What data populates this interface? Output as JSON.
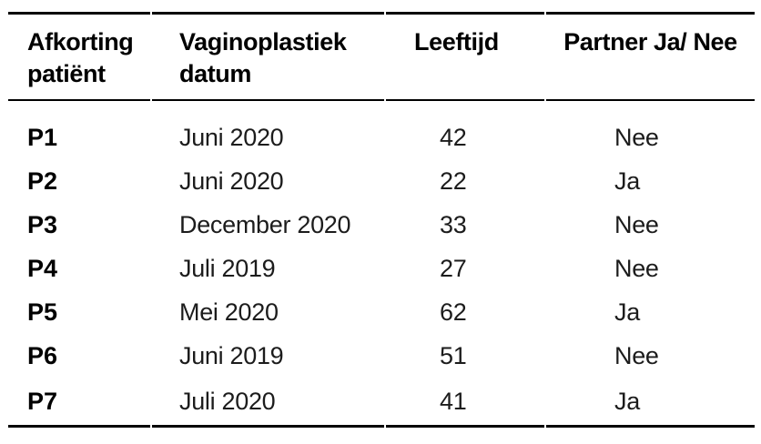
{
  "colors": {
    "background": "#ffffff",
    "rule": "#000000",
    "heading_text": "#000000",
    "body_text": "#1c1c1c"
  },
  "table": {
    "headers": [
      {
        "id": "afkorting",
        "label": "Afkorting patiënt"
      },
      {
        "id": "datum",
        "label": "Vaginoplastiek datum"
      },
      {
        "id": "leeftijd",
        "label": "Leeftijd"
      },
      {
        "id": "partner",
        "label": "Partner Ja/ Nee"
      }
    ],
    "rows": [
      {
        "patient": "P1",
        "datum": "Juni 2020",
        "leeftijd": "42",
        "partner": "Nee"
      },
      {
        "patient": "P2",
        "datum": "Juni 2020",
        "leeftijd": "22",
        "partner": "Ja"
      },
      {
        "patient": "P3",
        "datum": "December 2020",
        "leeftijd": "33",
        "partner": "Nee"
      },
      {
        "patient": "P4",
        "datum": "Juli 2019",
        "leeftijd": "27",
        "partner": "Nee"
      },
      {
        "patient": "P5",
        "datum": "Mei 2020",
        "leeftijd": "62",
        "partner": "Ja"
      },
      {
        "patient": "P6",
        "datum": "Juni 2019",
        "leeftijd": "51",
        "partner": "Nee"
      },
      {
        "patient": "P7",
        "datum": "Juli 2020",
        "leeftijd": "41",
        "partner": "Ja"
      }
    ]
  }
}
